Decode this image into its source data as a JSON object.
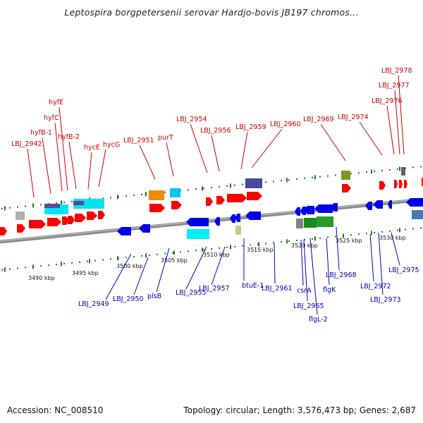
{
  "title": "Leptospira borgpetersenii serovar Hardjo-bovis JB197 chromos...",
  "footer": {
    "accession": "Accession: NC_008510",
    "stats": "Topology: circular; Length: 3,576,473 bp; Genes: 2,687"
  },
  "colors": {
    "forward": "#d90000",
    "reverse": "#0000c8",
    "backbone": "#8a8a8a",
    "dots": "#1f7a1f"
  },
  "ticks": [
    "3490 kbp",
    "3495 kbp",
    "3500 kbp",
    "3505 kbp",
    "3510 kbp",
    "3515 kbp",
    "3520 kbp",
    "3525 kbp",
    "3530 kbp"
  ],
  "top_labels": [
    "LBJ_2942",
    "hyfB-1",
    "hyfC",
    "hyfE",
    "hyfB-2",
    "hycE",
    "hycG",
    "LBJ_2951",
    "purT",
    "LBJ_2954",
    "LBJ_2956",
    "LBJ_2959",
    "LBJ_2960",
    "LBJ_2969",
    "LBJ_2974",
    "LBJ_2976",
    "LBJ_2977",
    "LBJ_2978"
  ],
  "bottom_labels": [
    "LBJ_2949",
    "LBJ_2950",
    "plsB",
    "LBJ_2955",
    "LBJ_2957",
    "btuE-1",
    "LBJ_2961",
    "csrA",
    "LBJ_2965",
    "flgL-2",
    "flgK",
    "LBJ_2968",
    "LBJ_2972",
    "LBJ_2973",
    "LBJ_2975"
  ]
}
